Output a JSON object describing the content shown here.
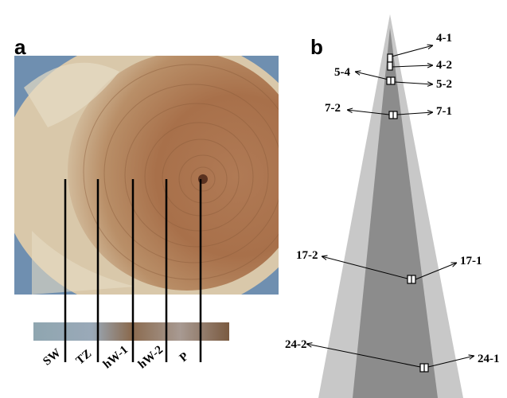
{
  "panel_a": {
    "label": "a",
    "core_labels": [
      "SW",
      "TZ",
      "hW-1",
      "hW-2",
      "P"
    ]
  },
  "panel_b": {
    "label": "b",
    "samples": [
      "4-1",
      "4-2",
      "5-4",
      "5-2",
      "7-2",
      "7-1",
      "17-2",
      "17-1",
      "24-2",
      "24-1"
    ]
  }
}
